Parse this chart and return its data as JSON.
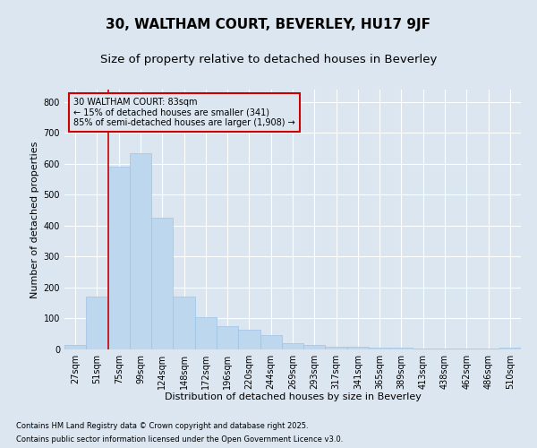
{
  "title": "30, WALTHAM COURT, BEVERLEY, HU17 9JF",
  "subtitle": "Size of property relative to detached houses in Beverley",
  "xlabel": "Distribution of detached houses by size in Beverley",
  "ylabel": "Number of detached properties",
  "footnote1": "Contains HM Land Registry data © Crown copyright and database right 2025.",
  "footnote2": "Contains public sector information licensed under the Open Government Licence v3.0.",
  "bar_labels": [
    "27sqm",
    "51sqm",
    "75sqm",
    "99sqm",
    "124sqm",
    "148sqm",
    "172sqm",
    "196sqm",
    "220sqm",
    "244sqm",
    "269sqm",
    "293sqm",
    "317sqm",
    "341sqm",
    "365sqm",
    "389sqm",
    "413sqm",
    "438sqm",
    "462sqm",
    "486sqm",
    "510sqm"
  ],
  "bar_values": [
    15,
    170,
    590,
    635,
    425,
    170,
    105,
    75,
    65,
    45,
    20,
    15,
    10,
    10,
    5,
    5,
    2,
    2,
    2,
    2,
    5
  ],
  "bar_color": "#BDD7EE",
  "bar_edge_color": "#9DC3E6",
  "background_color": "#DCE6F0",
  "grid_color": "#FFFFFF",
  "vline_x_pos": 1.5,
  "vline_color": "#CC0000",
  "annotation_text": "30 WALTHAM COURT: 83sqm\n← 15% of detached houses are smaller (341)\n85% of semi-detached houses are larger (1,908) →",
  "annotation_box_facecolor": "#DCE6F0",
  "annotation_box_edgecolor": "#CC0000",
  "ylim": [
    0,
    840
  ],
  "yticks": [
    0,
    100,
    200,
    300,
    400,
    500,
    600,
    700,
    800
  ],
  "title_fontsize": 11,
  "subtitle_fontsize": 9.5,
  "axis_label_fontsize": 8,
  "tick_fontsize": 7,
  "annotation_fontsize": 7,
  "footnote_fontsize": 6
}
